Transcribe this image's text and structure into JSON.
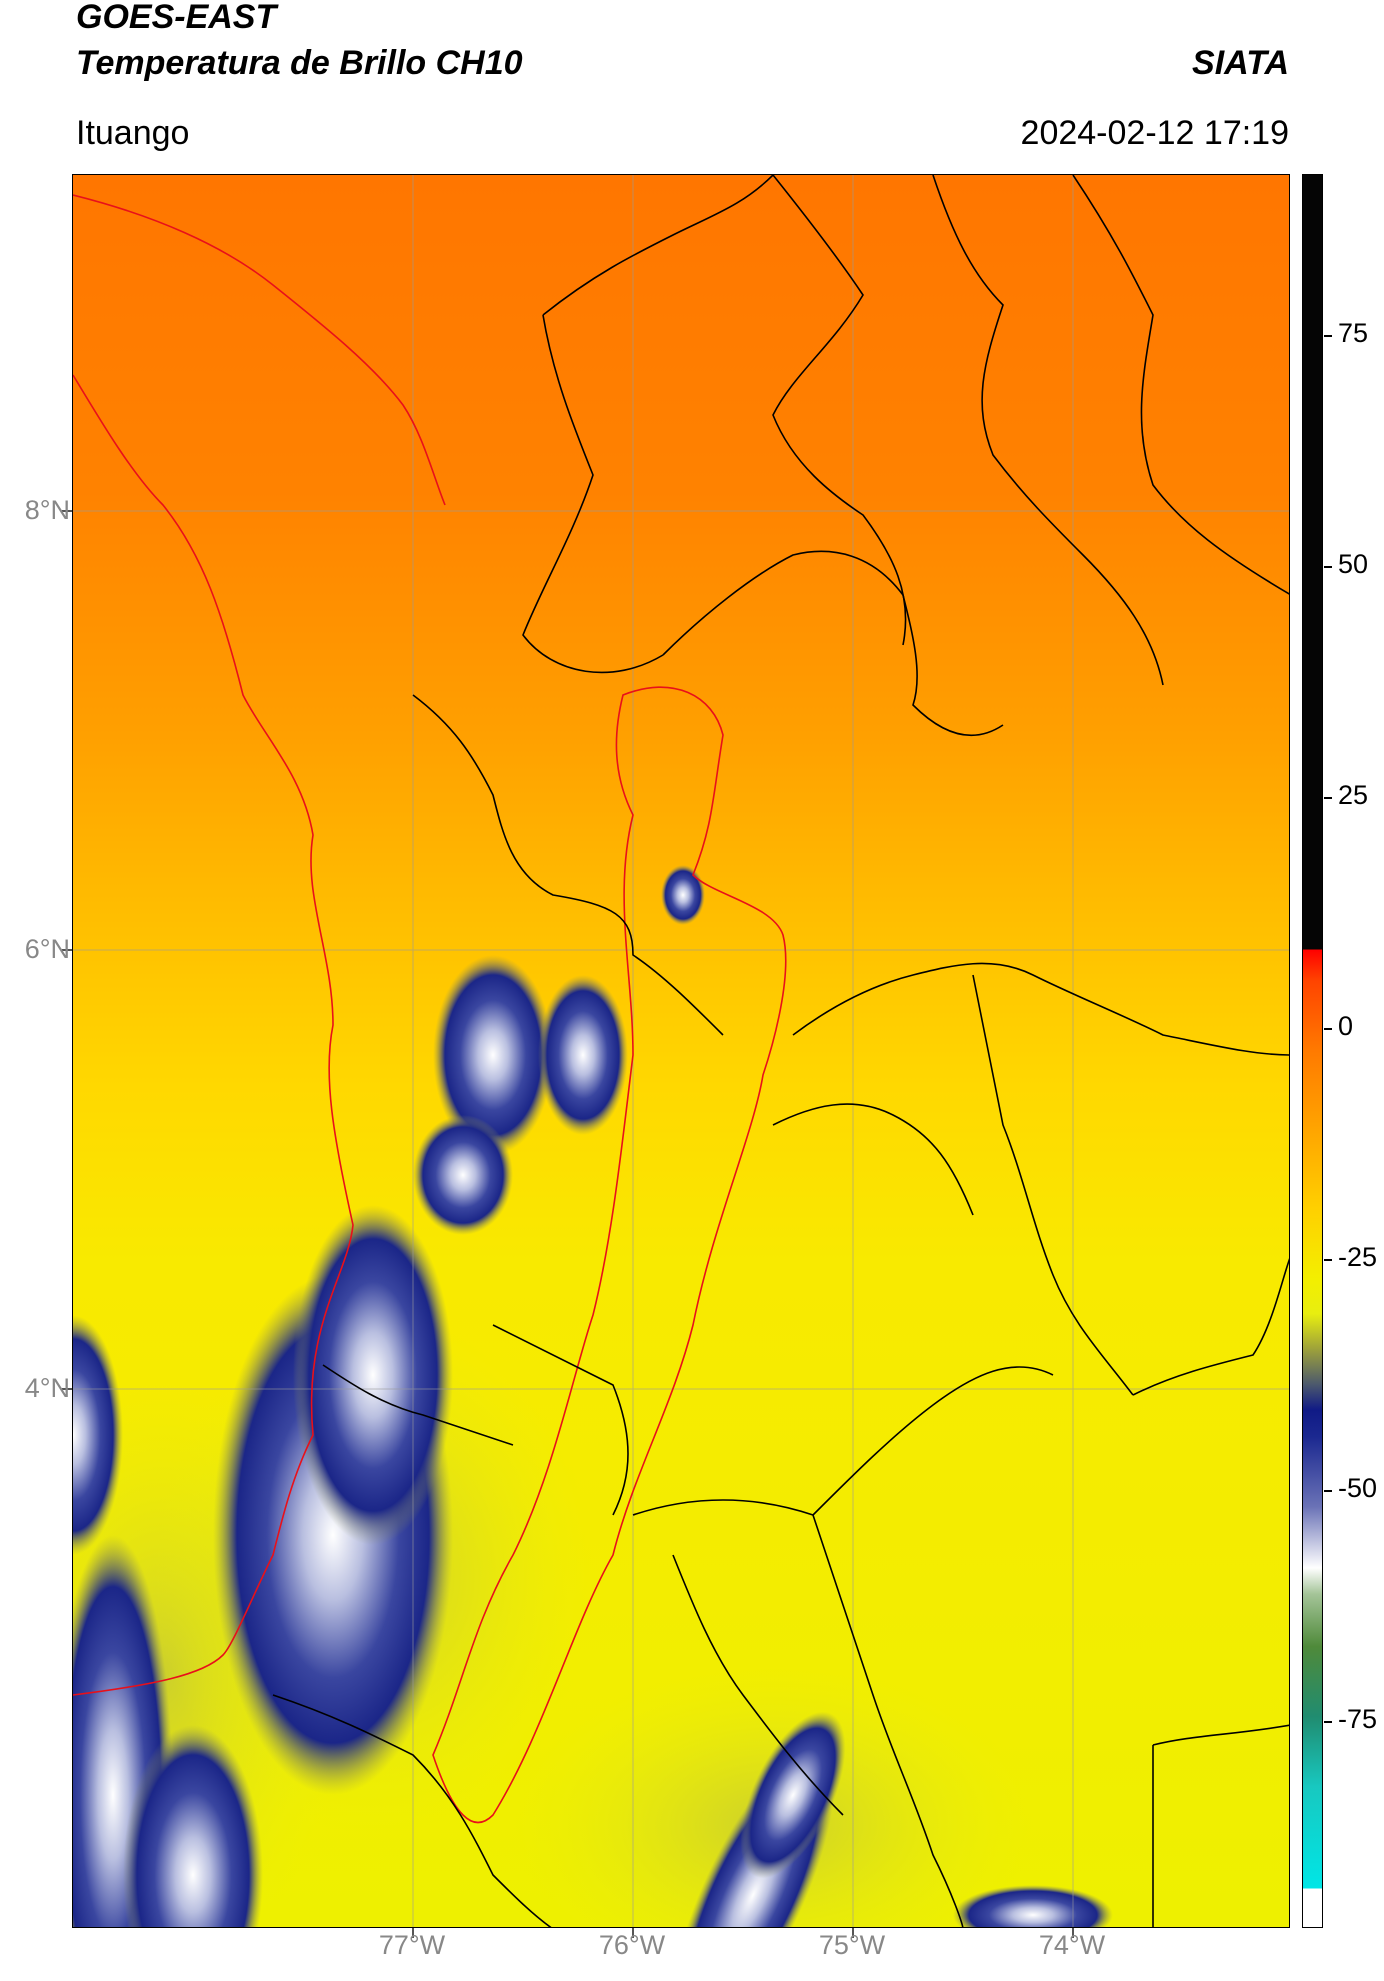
{
  "header": {
    "satellite": "GOES-EAST",
    "product": "Temperatura de Brillo CH10",
    "brand": "SIATA",
    "location": "Ituango",
    "timestamp": "2024-02-12 17:19"
  },
  "axes": {
    "lat_labels": [
      "8°N",
      "6°N",
      "4°N"
    ],
    "lon_labels": [
      "77°W",
      "76°W",
      "75°W",
      "74°W"
    ]
  },
  "colorbar": {
    "labels": [
      "75",
      "50",
      "25",
      "0",
      "-25",
      "-50",
      "-75"
    ]
  },
  "colors": {
    "warm": "#ff7a00",
    "mid": "#ffd000",
    "cold_cloud": "#1b2890",
    "boundary_dept": "#e8101a",
    "boundary_muni": "#000000"
  }
}
